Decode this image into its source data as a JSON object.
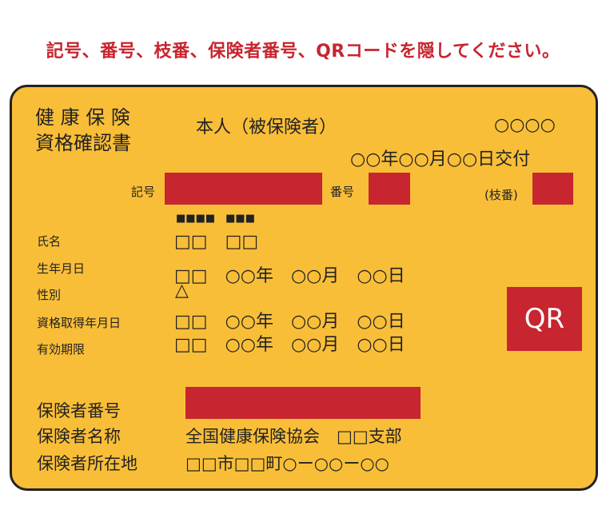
{
  "colors": {
    "card_background": "#f9be38",
    "redaction": "#c7252f",
    "instruction_text": "#c7252f",
    "ink": "#222222"
  },
  "instruction": "記号、番号、枝番、保険者番号、QRコードを隠してください。",
  "card": {
    "title_line1": "健 康 保 険",
    "title_line2": "資格確認書",
    "insured_type": "本人（被保険者）",
    "top_right_code": "○○○○",
    "issue_date": "○○年○○月○○日交付",
    "symbol_label": "記号",
    "number_label": "番号",
    "branch_label": "(枝番)",
    "name_furigana": "■■■■　■■■",
    "fields": {
      "name": {
        "label": "氏名",
        "value": "□□　□□"
      },
      "birth_date": {
        "label": "生年月日",
        "value": "□□　○○年　○○月　○○日"
      },
      "sex": {
        "label": "性別",
        "value": "△"
      },
      "qualification_date": {
        "label": "資格取得年月日",
        "value": "□□　○○年　○○月　○○日"
      },
      "valid_until": {
        "label": "有効期限",
        "value": "□□　○○年　○○月　○○日"
      }
    },
    "qr_label": "QR",
    "insurer": {
      "number_label": "保険者番号",
      "name_label": "保険者名称",
      "name_value": "全国健康保険協会　□□支部",
      "address_label": "保険者所在地",
      "address_value": "□□市□□町○ー○○ー○○"
    }
  }
}
